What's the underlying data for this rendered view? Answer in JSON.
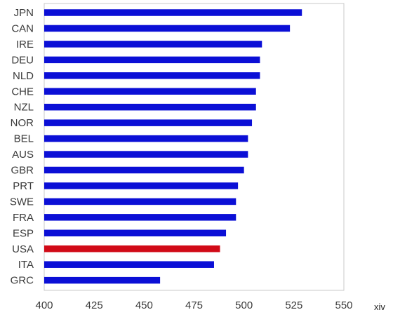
{
  "chart_data": {
    "type": "bar",
    "orientation": "horizontal",
    "categories": [
      "JPN",
      "CAN",
      "IRE",
      "DEU",
      "NLD",
      "CHE",
      "NZL",
      "NOR",
      "BEL",
      "AUS",
      "GBR",
      "PRT",
      "SWE",
      "FRA",
      "ESP",
      "USA",
      "ITA",
      "GRC"
    ],
    "values": [
      529,
      523,
      509,
      508,
      508,
      506,
      506,
      504,
      502,
      502,
      500,
      497,
      496,
      496,
      491,
      488,
      485,
      458
    ],
    "highlight": "USA",
    "colors": {
      "bar": "#0b0fd6",
      "highlight": "#d10a17",
      "plot_border": "#c9c9c9",
      "axis_text": "#3a3a3a"
    },
    "xlim": [
      400,
      550
    ],
    "xticks": [
      400,
      425,
      450,
      475,
      500,
      525,
      550
    ],
    "xlabel": "",
    "ylabel": "",
    "title": "",
    "grid": false,
    "legend": "none"
  },
  "footnote": "xiv"
}
